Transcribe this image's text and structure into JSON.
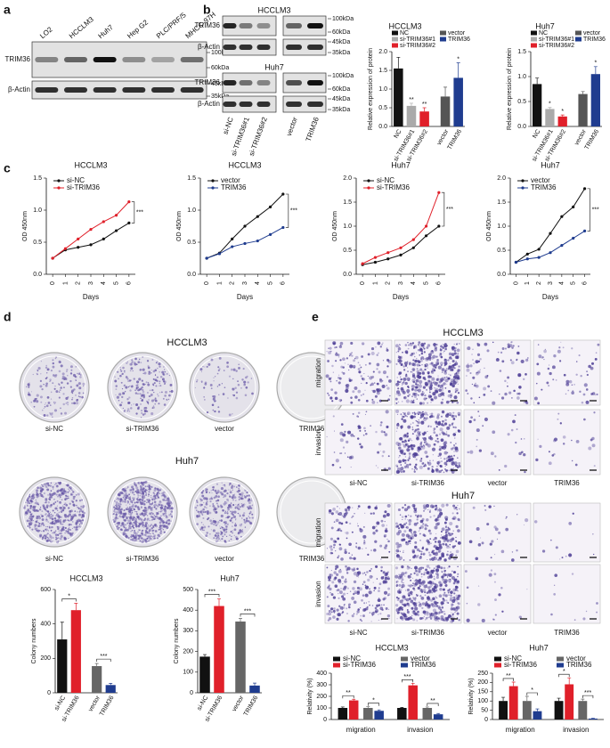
{
  "figure": {
    "panel_labels": [
      "a",
      "b",
      "c",
      "d",
      "e"
    ],
    "a": {
      "lanes": [
        "LO2",
        "HCCLM3",
        "Huh7",
        "Hep G2",
        "PLC/PRF/5",
        "MHCC-97H"
      ],
      "rows": [
        "TRIM36",
        "β-Actin"
      ],
      "markers": [
        "100kDa",
        "60kDa",
        "45kDa",
        "35kDa"
      ]
    },
    "b": {
      "blots": [
        {
          "title": "HCCLM3",
          "rows": [
            "TRIM36",
            "β-Actin"
          ],
          "markers": [
            "100kDa",
            "60kDa",
            "45kDa",
            "35kDa"
          ]
        },
        {
          "title": "Huh7",
          "rows": [
            "TRIM36",
            "β-Actin"
          ],
          "markers": [
            "100kDa",
            "60kDa",
            "45kDa",
            "35kDa"
          ]
        }
      ],
      "lanes": [
        "si-NC",
        "si-TRIM36#1",
        "si-TRIM36#2",
        "vector",
        "TRIM36"
      ]
    },
    "d": {
      "titles": [
        "HCCLM3",
        "Huh7"
      ],
      "samples": [
        "si-NC",
        "si-TRIM36",
        "vector",
        "TRIM36"
      ]
    },
    "e": {
      "titles": [
        "HCCLM3",
        "Huh7"
      ],
      "rows": [
        "migration",
        "invasion"
      ],
      "samples": [
        "si-NC",
        "si-TRIM36",
        "vector",
        "TRIM36"
      ]
    }
  },
  "chart_data": [
    {
      "type": "bar",
      "title": "HCCLM3",
      "ylabel": "Relative expression of protein",
      "categories": [
        "NC",
        "si-TRIM36#1",
        "si-TRIM36#2",
        "vector",
        "TRIM36"
      ],
      "values": [
        1.55,
        0.55,
        0.4,
        0.8,
        1.3
      ],
      "errors": [
        0.3,
        0.07,
        0.1,
        0.25,
        0.4
      ],
      "colors": [
        "#111111",
        "#aaaaaa",
        "#e0202a",
        "#555555",
        "#1f3c8f"
      ],
      "ylim": [
        0,
        2
      ],
      "yticks": [
        {
          "value": 0,
          "label": "0.0"
        },
        0.5,
        {
          "value": 1,
          "label": "1.0"
        },
        1.5,
        {
          "value": 2,
          "label": "2.0"
        }
      ],
      "legend": true,
      "annotations": [
        "**",
        "**",
        "*"
      ]
    },
    {
      "type": "bar",
      "title": "Huh7",
      "ylabel": "Relative expression of protein",
      "categories": [
        "NC",
        "si-TRIM36#1",
        "si-TRIM36#2",
        "vector",
        "TRIM36"
      ],
      "values": [
        0.85,
        0.35,
        0.2,
        0.65,
        1.05
      ],
      "errors": [
        0.12,
        0.03,
        0.03,
        0.05,
        0.15
      ],
      "colors": [
        "#111111",
        "#aaaaaa",
        "#e0202a",
        "#555555",
        "#1f3c8f"
      ],
      "ylim": [
        0,
        1.5
      ],
      "yticks": [
        {
          "value": 0,
          "label": "0.0"
        },
        0.5,
        {
          "value": 1,
          "label": "1.0"
        },
        1.5
      ],
      "legend": true,
      "annotations": [
        "*",
        "*",
        "*"
      ]
    },
    {
      "type": "line",
      "title": "HCCLM3",
      "xlabel": "Days",
      "ylabel": "OD 450nm",
      "x": [
        0,
        1,
        2,
        3,
        4,
        5,
        6
      ],
      "xlim": [
        -0.5,
        6.5
      ],
      "xticks": [
        0,
        1,
        2,
        3,
        4,
        5,
        6
      ],
      "ylim": [
        0,
        1.5
      ],
      "yticks": [
        {
          "value": 0,
          "label": "0.0"
        },
        0.5,
        {
          "value": 1,
          "label": "1.0"
        },
        1.5
      ],
      "series": [
        {
          "name": "si-NC",
          "color": "#111111",
          "values": [
            0.25,
            0.38,
            0.42,
            0.46,
            0.55,
            0.68,
            0.8
          ]
        },
        {
          "name": "si-TRIM36",
          "color": "#e0202a",
          "values": [
            0.25,
            0.4,
            0.55,
            0.7,
            0.82,
            0.92,
            1.13
          ]
        }
      ],
      "annotations": [
        "***"
      ]
    },
    {
      "type": "line",
      "title": "HCCLM3",
      "xlabel": "Days",
      "ylabel": "OD 450nm",
      "x": [
        0,
        1,
        2,
        3,
        4,
        5,
        6
      ],
      "xlim": [
        -0.5,
        6.5
      ],
      "xticks": [
        0,
        1,
        2,
        3,
        4,
        5,
        6
      ],
      "ylim": [
        0,
        1.5
      ],
      "yticks": [
        {
          "value": 0,
          "label": "0.0"
        },
        0.5,
        {
          "value": 1,
          "label": "1.0"
        },
        1.5
      ],
      "series": [
        {
          "name": "vector",
          "color": "#111111",
          "values": [
            0.25,
            0.33,
            0.55,
            0.75,
            0.9,
            1.05,
            1.25
          ]
        },
        {
          "name": "TRIM36",
          "color": "#1f3c8f",
          "values": [
            0.25,
            0.32,
            0.43,
            0.48,
            0.52,
            0.62,
            0.73
          ]
        }
      ],
      "annotations": [
        "***"
      ]
    },
    {
      "type": "line",
      "title": "Huh7",
      "xlabel": "Days",
      "ylabel": "OD 450nm",
      "x": [
        0,
        1,
        2,
        3,
        4,
        5,
        6
      ],
      "xlim": [
        -0.5,
        6.5
      ],
      "xticks": [
        0,
        1,
        2,
        3,
        4,
        5,
        6
      ],
      "ylim": [
        0,
        2
      ],
      "yticks": [
        {
          "value": 0,
          "label": "0.0"
        },
        0.5,
        {
          "value": 1,
          "label": "1.0"
        },
        1.5,
        {
          "value": 2,
          "label": "2.0"
        }
      ],
      "series": [
        {
          "name": "si-NC",
          "color": "#111111",
          "values": [
            0.2,
            0.25,
            0.32,
            0.4,
            0.55,
            0.8,
            1.0
          ]
        },
        {
          "name": "si-TRIM36",
          "color": "#e0202a",
          "values": [
            0.22,
            0.35,
            0.45,
            0.55,
            0.72,
            1.0,
            1.7
          ]
        }
      ],
      "annotations": [
        "***"
      ]
    },
    {
      "type": "line",
      "title": "Huh7",
      "xlabel": "Days",
      "ylabel": "OD 450nm",
      "x": [
        0,
        1,
        2,
        3,
        4,
        5,
        6
      ],
      "xlim": [
        -0.5,
        6.5
      ],
      "xticks": [
        0,
        1,
        2,
        3,
        4,
        5,
        6
      ],
      "ylim": [
        0,
        2
      ],
      "yticks": [
        {
          "value": 0,
          "label": "0.0"
        },
        0.5,
        {
          "value": 1,
          "label": "1.0"
        },
        1.5,
        {
          "value": 2,
          "label": "2.0"
        }
      ],
      "series": [
        {
          "name": "vector",
          "color": "#111111",
          "values": [
            0.25,
            0.42,
            0.52,
            0.85,
            1.2,
            1.4,
            1.78
          ]
        },
        {
          "name": "TRIM36",
          "color": "#1f3c8f",
          "values": [
            0.25,
            0.32,
            0.35,
            0.45,
            0.6,
            0.75,
            0.9
          ]
        }
      ],
      "annotations": [
        "***"
      ]
    },
    {
      "type": "bar",
      "title": "HCCLM3",
      "ylabel": "Colony numbers",
      "categories": [
        "si-NC",
        "si-TRIM36",
        "vector",
        "TRIM36"
      ],
      "values": [
        310,
        480,
        155,
        45
      ],
      "errors": [
        100,
        40,
        15,
        10
      ],
      "colors": [
        "#111111",
        "#e0202a",
        "#666666",
        "#1f3c8f"
      ],
      "ylim": [
        0,
        600
      ],
      "yticks": [
        0,
        200,
        400,
        600
      ],
      "annotations": [
        "*",
        "***"
      ]
    },
    {
      "type": "bar",
      "title": "Huh7",
      "ylabel": "Colony numbers",
      "categories": [
        "si-NC",
        "si-TRIM36",
        "vector",
        "TRIM36"
      ],
      "values": [
        175,
        420,
        345,
        35
      ],
      "errors": [
        10,
        35,
        15,
        12
      ],
      "colors": [
        "#111111",
        "#e0202a",
        "#666666",
        "#1f3c8f"
      ],
      "ylim": [
        0,
        500
      ],
      "yticks": [
        0,
        100,
        200,
        300,
        400,
        500
      ],
      "annotations": [
        "***",
        "***"
      ]
    },
    {
      "type": "grouped_bar",
      "title": "HCCLM3",
      "ylabel": "Relativity (%)",
      "categories": [
        "migration",
        "invasion"
      ],
      "series": [
        {
          "name": "si-NC",
          "color": "#111111",
          "values": [
            100,
            100
          ],
          "errors": [
            8,
            5
          ]
        },
        {
          "name": "si-TRIM36",
          "color": "#e0202a",
          "values": [
            165,
            295
          ],
          "errors": [
            10,
            18
          ]
        },
        {
          "name": "vector",
          "color": "#666666",
          "values": [
            100,
            100
          ],
          "errors": [
            10,
            8
          ]
        },
        {
          "name": "TRIM36",
          "color": "#1f3c8f",
          "values": [
            75,
            45
          ],
          "errors": [
            8,
            7
          ]
        }
      ],
      "ylim": [
        0,
        400
      ],
      "yticks": [
        0,
        100,
        200,
        300,
        400
      ],
      "annotations": [
        "**",
        "*",
        "***",
        "**"
      ]
    },
    {
      "type": "grouped_bar",
      "title": "Huh7",
      "ylabel": "Relativity (%)",
      "categories": [
        "migration",
        "invasion"
      ],
      "series": [
        {
          "name": "si-NC",
          "color": "#111111",
          "values": [
            100,
            100
          ],
          "errors": [
            20,
            15
          ]
        },
        {
          "name": "si-TRIM36",
          "color": "#e0202a",
          "values": [
            180,
            190
          ],
          "errors": [
            22,
            35
          ]
        },
        {
          "name": "vector",
          "color": "#666666",
          "values": [
            100,
            100
          ],
          "errors": [
            25,
            10
          ]
        },
        {
          "name": "TRIM36",
          "color": "#1f3c8f",
          "values": [
            45,
            5
          ],
          "errors": [
            12,
            2
          ]
        }
      ],
      "ylim": [
        0,
        250
      ],
      "yticks": [
        0,
        50,
        100,
        150,
        200,
        250
      ],
      "annotations": [
        "**",
        "*",
        "*",
        "***"
      ]
    }
  ]
}
